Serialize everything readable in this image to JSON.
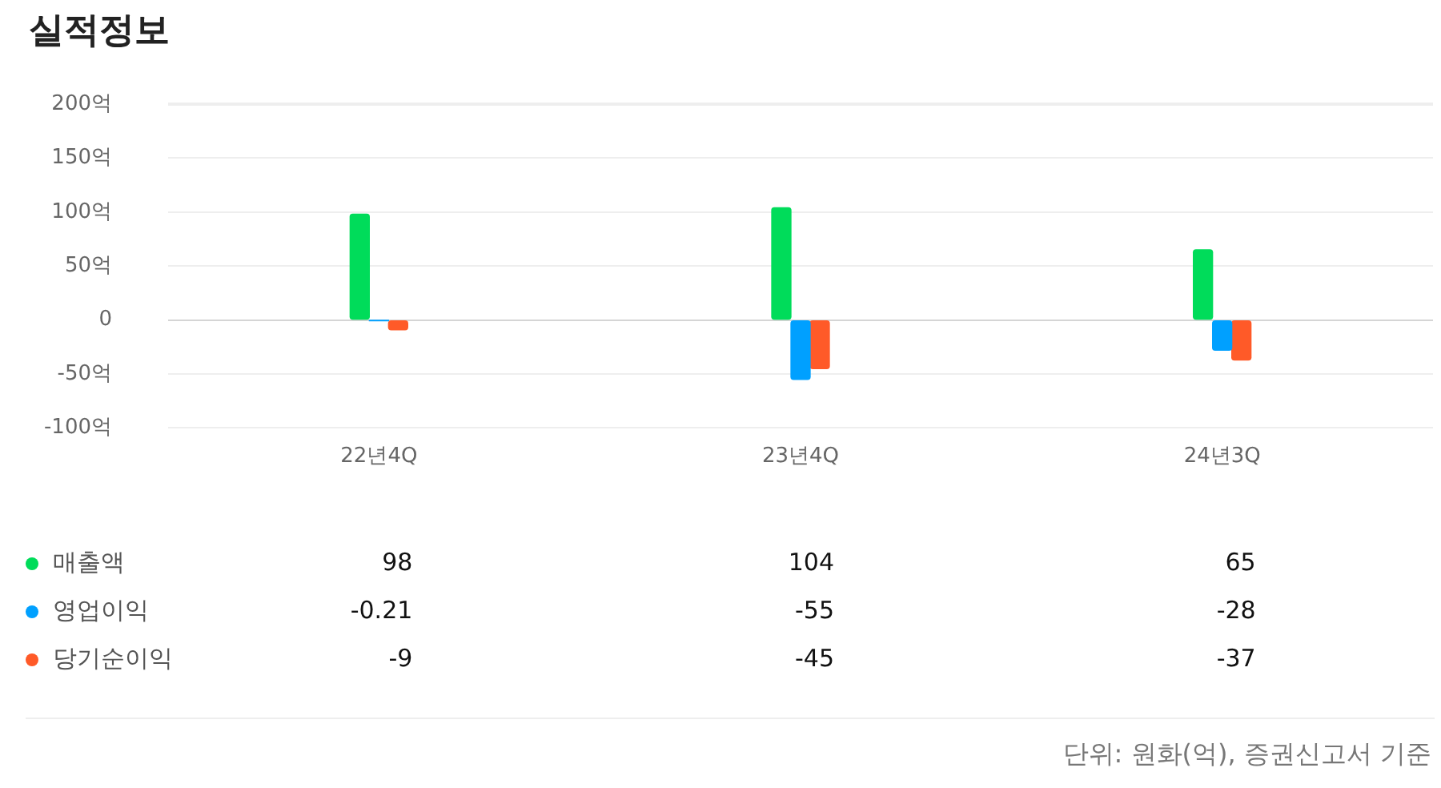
{
  "chart_data": {
    "type": "bar",
    "title": "실적정보",
    "categories": [
      "22년4Q",
      "23년4Q",
      "24년3Q"
    ],
    "series": [
      {
        "name": "매출액",
        "color": "#00dc5a",
        "values": [
          98,
          104,
          65
        ]
      },
      {
        "name": "영업이익",
        "color": "#00a0ff",
        "values": [
          -0.21,
          -55,
          -28
        ]
      },
      {
        "name": "당기순이익",
        "color": "#ff5a28",
        "values": [
          -9,
          -45,
          -37
        ]
      }
    ],
    "ylim": [
      -100,
      200
    ],
    "yticks": [
      {
        "value": -100,
        "label": "-100억"
      },
      {
        "value": -50,
        "label": "-50억"
      },
      {
        "value": 0,
        "label": "0"
      },
      {
        "value": 50,
        "label": "50억"
      },
      {
        "value": 100,
        "label": "100억"
      },
      {
        "value": 150,
        "label": "150억"
      },
      {
        "value": 200,
        "label": "200억"
      }
    ],
    "grid": "y",
    "legend": "bottom left",
    "data_labels": true,
    "annotations": [
      "단위: 원화(억), 증권신고서 기준"
    ]
  }
}
